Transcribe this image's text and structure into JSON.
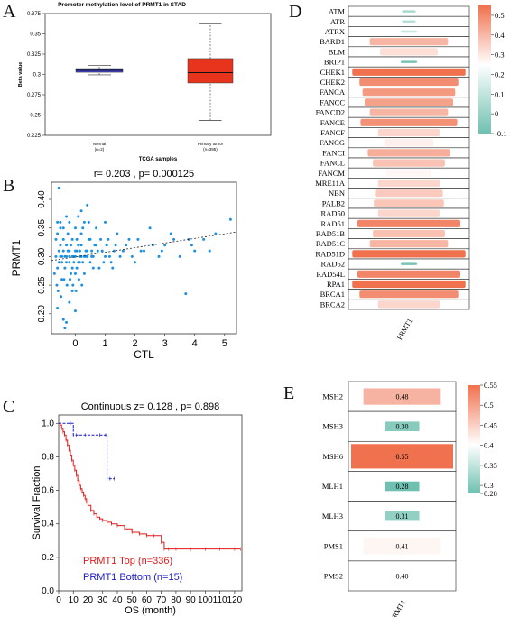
{
  "panel_letters": {
    "A": "A",
    "B": "B",
    "C": "C",
    "D": "D",
    "E": "E"
  },
  "colors": {
    "normal_box": "#4040c8",
    "tumor_box": "#e8341c",
    "scatter": "#1e90e0",
    "km_top": "#e01a1a",
    "km_bottom": "#1a1ac8",
    "heat_high": "#f0714e",
    "heat_low": "#6fc0b0",
    "heat_mid": "#ffffff"
  },
  "chart_data": [
    {
      "id": "A",
      "type": "box",
      "title": "Promoter methylation level of PRMT1 in STAD",
      "xlabel": "TCGA samples",
      "ylabel": "Beta value",
      "ylim": [
        0.225,
        0.375
      ],
      "yticks": [
        "0.375",
        "0.35",
        "0.325",
        "0.3",
        "0.275",
        "0.25",
        "0.225"
      ],
      "groups": [
        {
          "label": "Normal",
          "n": "(n=2)",
          "whisker_low": 0.2995,
          "q1": 0.3027,
          "median": 0.3052,
          "q3": 0.3072,
          "whisker_high": 0.3112
        },
        {
          "label": "Primary tumor",
          "n": "(n=395)",
          "whisker_low": 0.2435,
          "q1": 0.2895,
          "median": 0.3022,
          "q3": 0.3195,
          "whisker_high": 0.362
        }
      ]
    },
    {
      "id": "B",
      "type": "scatter",
      "title": "r= 0.203 , p= 0.000125",
      "xlabel": "CTL",
      "ylabel": "PRMT1",
      "xlim": [
        -0.8,
        5.4
      ],
      "ylim": [
        0.165,
        0.43
      ],
      "xticks": [
        "0",
        "1",
        "2",
        "3",
        "4",
        "5"
      ],
      "yticks": [
        "0.20",
        "0.25",
        "0.30",
        "0.35",
        "0.40"
      ],
      "trend": {
        "x0": -0.8,
        "y0": 0.293,
        "x1": 5.4,
        "y1": 0.343
      },
      "points": [
        [
          -0.6,
          0.21
        ],
        [
          -0.65,
          0.33
        ],
        [
          -0.55,
          0.29
        ],
        [
          -0.7,
          0.27
        ],
        [
          -0.5,
          0.32
        ],
        [
          -0.45,
          0.26
        ],
        [
          -0.4,
          0.31
        ],
        [
          -0.35,
          0.28
        ],
        [
          -0.3,
          0.3
        ],
        [
          -0.25,
          0.34
        ],
        [
          -0.2,
          0.29
        ],
        [
          -0.15,
          0.27
        ],
        [
          -0.1,
          0.33
        ],
        [
          -0.05,
          0.3
        ],
        [
          0.0,
          0.31
        ],
        [
          0.05,
          0.28
        ],
        [
          0.1,
          0.32
        ],
        [
          0.15,
          0.29
        ],
        [
          0.2,
          0.3
        ],
        [
          0.25,
          0.35
        ],
        [
          0.3,
          0.27
        ],
        [
          0.35,
          0.31
        ],
        [
          0.4,
          0.3
        ],
        [
          0.45,
          0.33
        ],
        [
          0.5,
          0.29
        ],
        [
          0.55,
          0.31
        ],
        [
          0.6,
          0.3
        ],
        [
          0.7,
          0.32
        ],
        [
          0.8,
          0.28
        ],
        [
          0.9,
          0.31
        ],
        [
          1.0,
          0.3
        ],
        [
          1.1,
          0.33
        ],
        [
          1.2,
          0.29
        ],
        [
          1.3,
          0.31
        ],
        [
          1.4,
          0.34
        ],
        [
          1.5,
          0.3
        ],
        [
          1.7,
          0.32
        ],
        [
          1.9,
          0.3
        ],
        [
          2.1,
          0.33
        ],
        [
          2.3,
          0.31
        ],
        [
          2.5,
          0.35
        ],
        [
          2.8,
          0.3
        ],
        [
          3.0,
          0.32
        ],
        [
          3.2,
          0.34
        ],
        [
          3.5,
          0.3
        ],
        [
          3.7,
          0.235
        ],
        [
          3.8,
          0.33
        ],
        [
          4.0,
          0.31
        ],
        [
          4.3,
          0.33
        ],
        [
          4.7,
          0.34
        ],
        [
          5.2,
          0.365
        ],
        [
          -0.55,
          0.42
        ],
        [
          -0.4,
          0.19
        ],
        [
          -0.35,
          0.175
        ],
        [
          -0.3,
          0.185
        ],
        [
          -0.2,
          0.22
        ],
        [
          -0.1,
          0.24
        ],
        [
          0.0,
          0.205
        ],
        [
          0.1,
          0.37
        ],
        [
          0.2,
          0.38
        ],
        [
          0.3,
          0.36
        ],
        [
          0.4,
          0.39
        ],
        [
          -0.6,
          0.36
        ],
        [
          -0.5,
          0.35
        ],
        [
          -0.45,
          0.3
        ],
        [
          -0.3,
          0.32
        ],
        [
          -0.2,
          0.31
        ],
        [
          -0.1,
          0.28
        ],
        [
          0.0,
          0.27
        ],
        [
          0.05,
          0.33
        ],
        [
          0.15,
          0.31
        ],
        [
          0.25,
          0.29
        ],
        [
          0.35,
          0.3
        ],
        [
          0.5,
          0.33
        ],
        [
          0.6,
          0.28
        ],
        [
          0.75,
          0.31
        ],
        [
          0.85,
          0.33
        ],
        [
          0.95,
          0.29
        ],
        [
          1.05,
          0.32
        ],
        [
          1.15,
          0.3
        ],
        [
          1.25,
          0.28
        ],
        [
          1.35,
          0.32
        ],
        [
          1.6,
          0.31
        ],
        [
          1.8,
          0.33
        ],
        [
          2.0,
          0.29
        ],
        [
          2.2,
          0.31
        ],
        [
          2.6,
          0.32
        ],
        [
          2.9,
          0.31
        ],
        [
          3.3,
          0.33
        ],
        [
          3.9,
          0.32
        ],
        [
          4.5,
          0.31
        ],
        [
          -0.65,
          0.3
        ],
        [
          -0.6,
          0.28
        ],
        [
          -0.55,
          0.31
        ],
        [
          -0.5,
          0.3
        ],
        [
          -0.45,
          0.29
        ],
        [
          -0.4,
          0.33
        ],
        [
          -0.35,
          0.3
        ],
        [
          -0.3,
          0.29
        ],
        [
          -0.25,
          0.31
        ],
        [
          -0.2,
          0.3
        ],
        [
          -0.15,
          0.32
        ],
        [
          -0.1,
          0.3
        ],
        [
          -0.05,
          0.29
        ],
        [
          0.0,
          0.3
        ],
        [
          0.05,
          0.31
        ],
        [
          0.1,
          0.29
        ],
        [
          0.15,
          0.3
        ],
        [
          0.2,
          0.32
        ],
        [
          0.3,
          0.3
        ],
        [
          0.4,
          0.31
        ],
        [
          0.55,
          0.3
        ],
        [
          0.65,
          0.32
        ],
        [
          -0.62,
          0.25
        ],
        [
          -0.58,
          0.24
        ],
        [
          -0.48,
          0.23
        ],
        [
          -0.38,
          0.26
        ],
        [
          -0.28,
          0.25
        ],
        [
          -0.18,
          0.26
        ],
        [
          -0.08,
          0.25
        ],
        [
          0.02,
          0.24
        ],
        [
          0.12,
          0.26
        ],
        [
          0.22,
          0.25
        ],
        [
          -0.6,
          0.34
        ],
        [
          -0.5,
          0.36
        ],
        [
          -0.4,
          0.35
        ],
        [
          -0.3,
          0.37
        ],
        [
          -0.2,
          0.36
        ],
        [
          0.0,
          0.35
        ],
        [
          0.2,
          0.34
        ],
        [
          0.45,
          0.36
        ],
        [
          0.7,
          0.35
        ],
        [
          1.0,
          0.36
        ]
      ]
    },
    {
      "id": "C",
      "type": "line",
      "title": "Continuous z= 0.128 , p= 0.898",
      "xlabel": "OS (month)",
      "ylabel": "Survival Fraction",
      "xlim": [
        0,
        125
      ],
      "ylim": [
        0,
        1.05
      ],
      "xticks": [
        "0",
        "10",
        "20",
        "30",
        "40",
        "50",
        "60",
        "70",
        "80",
        "90",
        "100",
        "110",
        "120"
      ],
      "yticks": [
        "0.0",
        "0.2",
        "0.4",
        "0.6",
        "0.8",
        "1.0"
      ],
      "series": [
        {
          "name": "PRMT1 Top (n=336)",
          "x": [
            0,
            1,
            2,
            3,
            4,
            5,
            6,
            7,
            8,
            9,
            10,
            11,
            12,
            13,
            14,
            15,
            16,
            17,
            18,
            19,
            20,
            22,
            24,
            26,
            28,
            30,
            33,
            36,
            40,
            45,
            50,
            55,
            60,
            65,
            70,
            72,
            75,
            80,
            90,
            100,
            110,
            120,
            124
          ],
          "y": [
            1.0,
            0.99,
            0.97,
            0.95,
            0.93,
            0.9,
            0.87,
            0.84,
            0.81,
            0.78,
            0.75,
            0.72,
            0.69,
            0.66,
            0.63,
            0.61,
            0.59,
            0.57,
            0.55,
            0.53,
            0.51,
            0.48,
            0.46,
            0.44,
            0.43,
            0.42,
            0.41,
            0.4,
            0.39,
            0.37,
            0.35,
            0.34,
            0.33,
            0.33,
            0.29,
            0.25,
            0.25,
            0.25,
            0.25,
            0.25,
            0.25,
            0.25,
            0.25
          ]
        },
        {
          "name": "PRMT1 Bottom (n=15)",
          "x": [
            0,
            8,
            10,
            12,
            18,
            20,
            28,
            32,
            33,
            35,
            38
          ],
          "y": [
            1.0,
            1.0,
            0.93,
            0.93,
            0.93,
            0.93,
            0.93,
            0.93,
            0.67,
            0.67,
            0.67
          ]
        }
      ]
    },
    {
      "id": "D",
      "type": "heatmap",
      "xlabel": "PRMT1",
      "colorbar": {
        "max": 0.55,
        "min": -0.1,
        "ticks": [
          "0.5",
          "0.4",
          "0.3",
          "0.2",
          "0.1",
          "0",
          "-0.1"
        ]
      },
      "rows": [
        "ATM",
        "ATR",
        "ATRX",
        "BARD1",
        "BLM",
        "BRIP1",
        "CHEK1",
        "CHEK2",
        "FANCA",
        "FANCC",
        "FANCD2",
        "FANCE",
        "FANCF",
        "FANCG",
        "FANCI",
        "FANCL",
        "FANCM",
        "MRE11A",
        "NBN",
        "PALB2",
        "RAD50",
        "RAD51",
        "RAD51B",
        "RAD51C",
        "RAD51D",
        "RAD52",
        "RAD54L",
        "RPA1",
        "BRCA1",
        "BRCA2"
      ],
      "values": [
        0.02,
        0.05,
        0.08,
        0.38,
        0.28,
        -0.08,
        0.55,
        0.48,
        0.45,
        0.43,
        0.38,
        0.47,
        0.3,
        0.24,
        0.4,
        0.35,
        0.22,
        0.3,
        0.33,
        0.34,
        0.3,
        0.5,
        0.35,
        0.38,
        0.55,
        -0.08,
        0.5,
        0.55,
        0.48,
        0.3
      ]
    },
    {
      "id": "E",
      "type": "heatmap",
      "xlabel": "PRMT1",
      "colorbar": {
        "max": 0.55,
        "min": 0.28,
        "ticks": [
          "0.55",
          "0.5",
          "0.45",
          "0.4",
          "0.35",
          "0.3",
          "0.28"
        ]
      },
      "rows": [
        "MSH2",
        "MSH3",
        "MSH6",
        "MLH1",
        "MLH3",
        "PMS1",
        "PMS2"
      ],
      "values": [
        0.48,
        0.3,
        0.55,
        0.28,
        0.31,
        0.41,
        0.4
      ],
      "labels": [
        "0.48",
        "0.30",
        "0.55",
        "0.28",
        "0.31",
        "0.41",
        "0.40"
      ]
    }
  ]
}
